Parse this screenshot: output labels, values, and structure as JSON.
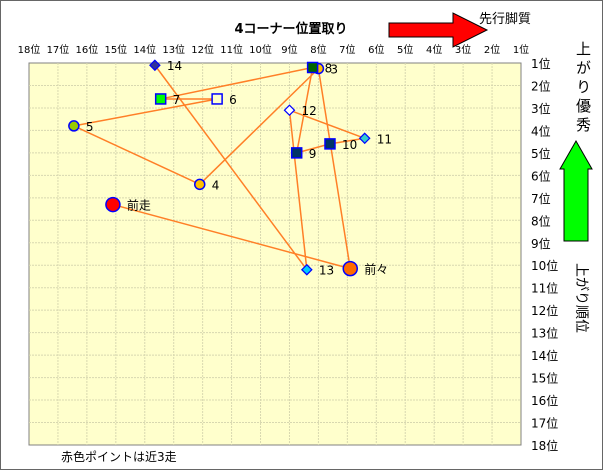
{
  "chart_data": {
    "type": "scatter",
    "title": "4コーナー位置取り",
    "xlabel": "",
    "ylabel": "",
    "x_direction_label": "先行脚質",
    "y_top_label": "上がり優秀",
    "y_side_label": "上がり順位",
    "note": "赤色ポイントは近3走",
    "xlim": [
      18,
      1
    ],
    "ylim": [
      1,
      18
    ],
    "x_reversed": true,
    "y_reversed": true,
    "grid": true,
    "x_ticks": [
      "18位",
      "17位",
      "16位",
      "15位",
      "14位",
      "13位",
      "12位",
      "11位",
      "10位",
      "9位",
      "8位",
      "7位",
      "6位",
      "5位",
      "4位",
      "3位",
      "2位",
      "1位"
    ],
    "y_ticks": [
      "1位",
      "2位",
      "3位",
      "4位",
      "5位",
      "6位",
      "7位",
      "8位",
      "9位",
      "10位",
      "11位",
      "12位",
      "13位",
      "14位",
      "15位",
      "16位",
      "17位",
      "18位"
    ],
    "line_color": "#ff7f27",
    "plot_bg": "#ffffcc",
    "points": [
      {
        "label": "前走",
        "x": 15.1,
        "y": 7.3,
        "marker": "circle",
        "fill": "#ff0000",
        "big": true
      },
      {
        "label": "前々",
        "x": 6.9,
        "y": 10.15,
        "marker": "circle",
        "fill": "#ff6a00",
        "big": true
      },
      {
        "label": "3",
        "x": 8.0,
        "y": 1.25,
        "marker": "circle",
        "fill": "#ffc000"
      },
      {
        "label": "4",
        "x": 12.1,
        "y": 6.4,
        "marker": "circle",
        "fill": "#ffc000"
      },
      {
        "label": "5",
        "x": 16.45,
        "y": 3.8,
        "marker": "circle",
        "fill": "#99cc00"
      },
      {
        "label": "6",
        "x": 11.5,
        "y": 2.6,
        "marker": "square",
        "fill": "#ffffcc"
      },
      {
        "label": "7",
        "x": 13.45,
        "y": 2.6,
        "marker": "square",
        "fill": "#00ff00"
      },
      {
        "label": "8",
        "x": 8.2,
        "y": 1.2,
        "marker": "square",
        "fill": "#006400"
      },
      {
        "label": "9",
        "x": 8.75,
        "y": 5.0,
        "marker": "square",
        "fill": "#003366"
      },
      {
        "label": "10",
        "x": 7.6,
        "y": 4.6,
        "marker": "square",
        "fill": "#003366"
      },
      {
        "label": "11",
        "x": 6.4,
        "y": 4.35,
        "marker": "diamond",
        "fill": "#33cccc"
      },
      {
        "label": "12",
        "x": 9.0,
        "y": 3.1,
        "marker": "diamond",
        "fill": "#ffffff"
      },
      {
        "label": "13",
        "x": 8.4,
        "y": 10.2,
        "marker": "diamond",
        "fill": "#00ccff"
      },
      {
        "label": "14",
        "x": 13.65,
        "y": 1.1,
        "marker": "diamond",
        "fill": "#333399"
      }
    ]
  }
}
